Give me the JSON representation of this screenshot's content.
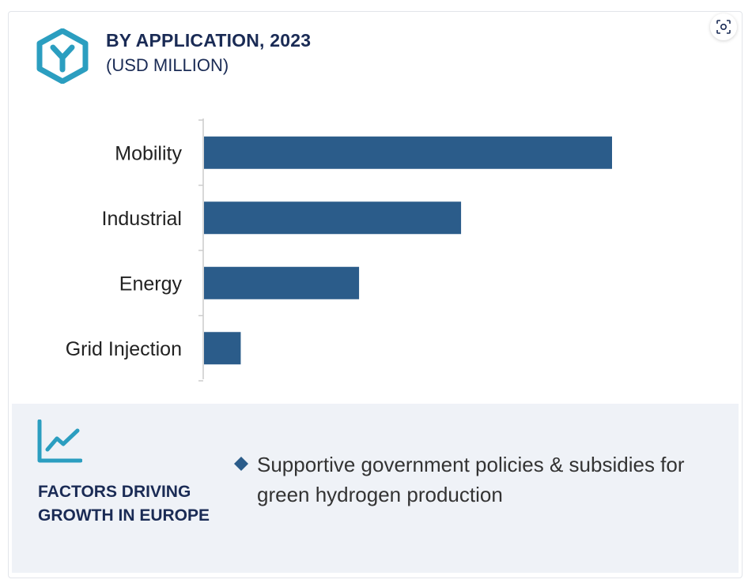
{
  "header": {
    "title": "BY APPLICATION, 2023",
    "subtitle": "(USD MILLION)",
    "logo_icon": "hexagon-y-logo-icon",
    "zoom_icon": "zoom-scan-icon"
  },
  "colors": {
    "bar": "#2b5c8a",
    "title": "#1a2b55",
    "accent": "#2b9ec0",
    "panel_bg": "#eff2f7"
  },
  "chart_data": {
    "type": "bar",
    "orientation": "horizontal",
    "categories": [
      "Mobility",
      "Industrial",
      "Energy",
      "Grid Injection"
    ],
    "values": [
      100,
      63,
      38,
      9
    ],
    "xlabel": "",
    "ylabel": "",
    "xlim": [
      0,
      100
    ],
    "grid": false,
    "legend": "none"
  },
  "factors": {
    "icon": "trend-chart-icon",
    "title": "FACTORS DRIVING GROWTH IN EUROPE",
    "bullet_icon": "diamond-icon",
    "items": [
      "Supportive government policies & subsidies for green hydrogen production"
    ]
  }
}
